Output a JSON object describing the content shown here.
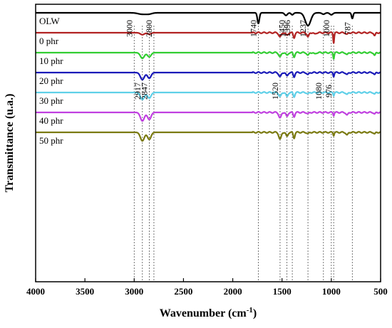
{
  "chart_data": {
    "type": "line",
    "xlabel": "Wavenumber (cm",
    "xlabel_sup": "-1",
    "xlabel_close": ")",
    "ylabel": "Transmittance (u.a.)",
    "xlim": [
      4000,
      500
    ],
    "xticks": [
      "4000",
      "3500",
      "3000",
      "2500",
      "2000",
      "1500",
      "1000",
      "500"
    ],
    "grid": false,
    "reference_lines": [
      3000,
      2917,
      2847,
      2800,
      1740,
      1520,
      1450,
      1396,
      1237,
      1080,
      1000,
      976,
      787
    ],
    "series": [
      {
        "name": "OLW",
        "color": "#000000",
        "baseline": 1.0,
        "peaks": [
          {
            "x": 2920,
            "d": 0.01,
            "w": 40
          },
          {
            "x": 2850,
            "d": 0.008,
            "w": 30
          },
          {
            "x": 1740,
            "d": 0.075,
            "w": 10
          },
          {
            "x": 1460,
            "d": 0.018,
            "w": 14
          },
          {
            "x": 1396,
            "d": 0.014,
            "w": 12
          },
          {
            "x": 1237,
            "d": 0.09,
            "w": 28
          },
          {
            "x": 1080,
            "d": 0.01,
            "w": 15
          },
          {
            "x": 1000,
            "d": 0.014,
            "w": 15
          },
          {
            "x": 787,
            "d": 0.04,
            "w": 8
          }
        ]
      },
      {
        "name": "0 phr",
        "color": "#b22222",
        "baseline": 0.86,
        "peaks": [
          {
            "x": 2917,
            "d": 0.014,
            "w": 20
          },
          {
            "x": 2847,
            "d": 0.01,
            "w": 18
          },
          {
            "x": 1520,
            "d": 0.03,
            "w": 12
          },
          {
            "x": 1450,
            "d": 0.02,
            "w": 10
          },
          {
            "x": 1378,
            "d": 0.035,
            "w": 8
          },
          {
            "x": 1237,
            "d": 0.03,
            "w": 10
          },
          {
            "x": 1168,
            "d": 0.01,
            "w": 10
          },
          {
            "x": 976,
            "d": 0.068,
            "w": 5
          },
          {
            "x": 840,
            "d": 0.012,
            "w": 10
          },
          {
            "x": 560,
            "d": 0.022,
            "w": 8
          }
        ]
      },
      {
        "name": "10 phr",
        "color": "#32cd32",
        "baseline": 0.72,
        "peaks": [
          {
            "x": 2917,
            "d": 0.04,
            "w": 20
          },
          {
            "x": 2847,
            "d": 0.03,
            "w": 18
          },
          {
            "x": 1520,
            "d": 0.03,
            "w": 12
          },
          {
            "x": 1450,
            "d": 0.02,
            "w": 10
          },
          {
            "x": 1378,
            "d": 0.03,
            "w": 8
          },
          {
            "x": 1237,
            "d": 0.02,
            "w": 10
          },
          {
            "x": 1168,
            "d": 0.01,
            "w": 10
          },
          {
            "x": 976,
            "d": 0.04,
            "w": 5
          },
          {
            "x": 840,
            "d": 0.015,
            "w": 10
          },
          {
            "x": 560,
            "d": 0.02,
            "w": 8
          }
        ]
      },
      {
        "name": "20 phr",
        "color": "#1a1ab8",
        "baseline": 0.58,
        "peaks": [
          {
            "x": 2917,
            "d": 0.05,
            "w": 20
          },
          {
            "x": 2847,
            "d": 0.04,
            "w": 18
          },
          {
            "x": 1520,
            "d": 0.03,
            "w": 12
          },
          {
            "x": 1450,
            "d": 0.025,
            "w": 10
          },
          {
            "x": 1378,
            "d": 0.03,
            "w": 8
          },
          {
            "x": 1237,
            "d": 0.015,
            "w": 10
          },
          {
            "x": 976,
            "d": 0.025,
            "w": 5
          },
          {
            "x": 840,
            "d": 0.015,
            "w": 10
          },
          {
            "x": 560,
            "d": 0.015,
            "w": 8
          }
        ]
      },
      {
        "name": "30 phr",
        "color": "#5fd0e8",
        "baseline": 0.44,
        "peaks": [
          {
            "x": 2917,
            "d": 0.05,
            "w": 20
          },
          {
            "x": 2847,
            "d": 0.04,
            "w": 18
          },
          {
            "x": 1520,
            "d": 0.03,
            "w": 12
          },
          {
            "x": 1450,
            "d": 0.03,
            "w": 10
          },
          {
            "x": 1378,
            "d": 0.03,
            "w": 8
          },
          {
            "x": 1237,
            "d": 0.01,
            "w": 10
          },
          {
            "x": 976,
            "d": 0.02,
            "w": 5
          },
          {
            "x": 840,
            "d": 0.015,
            "w": 10
          },
          {
            "x": 560,
            "d": 0.012,
            "w": 8
          }
        ]
      },
      {
        "name": "40 phr",
        "color": "#c040e0",
        "baseline": 0.3,
        "peaks": [
          {
            "x": 2917,
            "d": 0.06,
            "w": 20
          },
          {
            "x": 2847,
            "d": 0.05,
            "w": 18
          },
          {
            "x": 1520,
            "d": 0.04,
            "w": 12
          },
          {
            "x": 1450,
            "d": 0.03,
            "w": 10
          },
          {
            "x": 1378,
            "d": 0.03,
            "w": 8
          },
          {
            "x": 1237,
            "d": 0.01,
            "w": 10
          },
          {
            "x": 976,
            "d": 0.02,
            "w": 5
          },
          {
            "x": 840,
            "d": 0.02,
            "w": 10
          },
          {
            "x": 560,
            "d": 0.012,
            "w": 8
          }
        ]
      },
      {
        "name": "50 phr",
        "color": "#7a7a10",
        "baseline": 0.16,
        "peaks": [
          {
            "x": 2917,
            "d": 0.06,
            "w": 20
          },
          {
            "x": 2847,
            "d": 0.05,
            "w": 18
          },
          {
            "x": 1520,
            "d": 0.05,
            "w": 12
          },
          {
            "x": 1450,
            "d": 0.03,
            "w": 10
          },
          {
            "x": 1378,
            "d": 0.04,
            "w": 8
          },
          {
            "x": 1237,
            "d": 0.01,
            "w": 10
          },
          {
            "x": 976,
            "d": 0.02,
            "w": 5
          },
          {
            "x": 840,
            "d": 0.02,
            "w": 10
          },
          {
            "x": 560,
            "d": 0.012,
            "w": 8
          }
        ]
      }
    ],
    "annotations": [
      {
        "text": "3000",
        "x": 3000,
        "row": "top"
      },
      {
        "text": "2800",
        "x": 2800,
        "row": "top"
      },
      {
        "text": "1740",
        "x": 1740,
        "row": "top"
      },
      {
        "text": "1450",
        "x": 1450,
        "row": "top"
      },
      {
        "text": "1396",
        "x": 1396,
        "row": "top"
      },
      {
        "text": "1237",
        "x": 1237,
        "row": "top"
      },
      {
        "text": "1000",
        "x": 1000,
        "row": "top"
      },
      {
        "text": "787",
        "x": 787,
        "row": "top"
      },
      {
        "text": "2917",
        "x": 2917,
        "row": "mid"
      },
      {
        "text": "2847",
        "x": 2847,
        "row": "mid"
      },
      {
        "text": "1520",
        "x": 1520,
        "row": "mid"
      },
      {
        "text": "1080",
        "x": 1080,
        "row": "mid"
      },
      {
        "text": "976",
        "x": 976,
        "row": "mid"
      }
    ]
  }
}
